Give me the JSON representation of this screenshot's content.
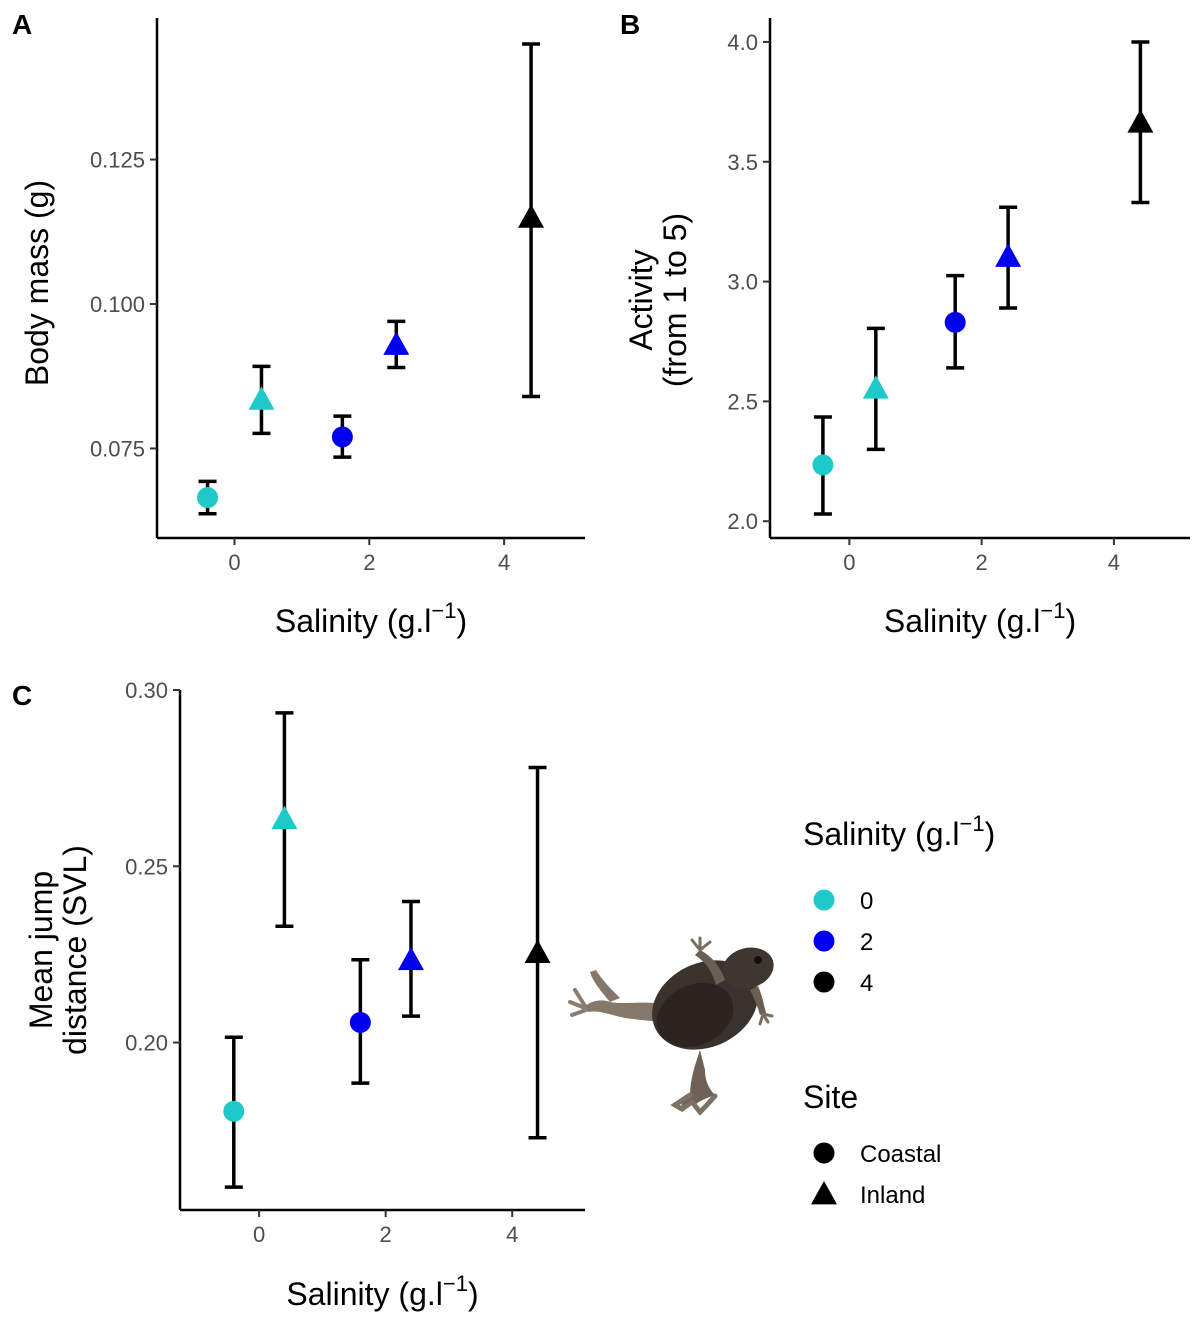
{
  "colors": {
    "salinity_0": "#1ECAC9",
    "salinity_2": "#0000EE",
    "salinity_4": "#000000"
  },
  "chart_data": [
    {
      "panel": "A",
      "type": "scatter",
      "xlabel": "Salinity (g.l",
      "xlabel_sup": "−1",
      "xlabel_end": ")",
      "ylabel": [
        "Body mass (g)"
      ],
      "xlim": [
        -1.15,
        5.2
      ],
      "ylim": [
        0.0595,
        0.1495
      ],
      "xticks": [
        0,
        2,
        4
      ],
      "yticks": [
        0.075,
        0.1,
        0.125
      ],
      "ytick_labels": [
        "0.075",
        "0.100",
        "0.125"
      ],
      "points": [
        {
          "salinity": 0,
          "site": "Coastal",
          "x": -0.4,
          "y": 0.0665,
          "lo": 0.0637,
          "hi": 0.0693
        },
        {
          "salinity": 0,
          "site": "Inland",
          "x": 0.4,
          "y": 0.0835,
          "lo": 0.0776,
          "hi": 0.0892
        },
        {
          "salinity": 2,
          "site": "Coastal",
          "x": 1.6,
          "y": 0.077,
          "lo": 0.0735,
          "hi": 0.0806
        },
        {
          "salinity": 2,
          "site": "Inland",
          "x": 2.4,
          "y": 0.093,
          "lo": 0.089,
          "hi": 0.097
        },
        {
          "salinity": 4,
          "site": "Inland",
          "x": 4.4,
          "y": 0.115,
          "lo": 0.084,
          "hi": 0.145
        }
      ]
    },
    {
      "panel": "B",
      "type": "scatter",
      "xlabel": "Salinity (g.l",
      "xlabel_sup": "−1",
      "xlabel_end": ")",
      "ylabel": [
        "Activity",
        "(from 1 to 5)"
      ],
      "xlim": [
        -1.2,
        5.15
      ],
      "ylim": [
        1.93,
        4.1
      ],
      "xticks": [
        0,
        2,
        4
      ],
      "yticks": [
        2.0,
        2.5,
        3.0,
        3.5,
        4.0
      ],
      "ytick_labels": [
        "2.0",
        "2.5",
        "3.0",
        "3.5",
        "4.0"
      ],
      "points": [
        {
          "salinity": 0,
          "site": "Coastal",
          "x": -0.4,
          "y": 2.235,
          "lo": 2.03,
          "hi": 2.435
        },
        {
          "salinity": 0,
          "site": "Inland",
          "x": 0.4,
          "y": 2.555,
          "lo": 2.3,
          "hi": 2.805
        },
        {
          "salinity": 2,
          "site": "Coastal",
          "x": 1.6,
          "y": 2.83,
          "lo": 2.64,
          "hi": 3.025
        },
        {
          "salinity": 2,
          "site": "Inland",
          "x": 2.4,
          "y": 3.105,
          "lo": 2.89,
          "hi": 3.31
        },
        {
          "salinity": 4,
          "site": "Inland",
          "x": 4.4,
          "y": 3.665,
          "lo": 3.33,
          "hi": 4.0
        }
      ]
    },
    {
      "panel": "C",
      "type": "scatter",
      "xlabel": "Salinity (g.l",
      "xlabel_sup": "−1",
      "xlabel_end": ")",
      "ylabel": [
        "Mean jump",
        "distance (SVL)"
      ],
      "xlim": [
        -1.25,
        5.15
      ],
      "ylim": [
        0.1525,
        0.3
      ],
      "xticks": [
        0,
        2,
        4
      ],
      "yticks": [
        0.2,
        0.25,
        0.3
      ],
      "ytick_labels": [
        "0.20",
        "0.25",
        "0.30"
      ],
      "points": [
        {
          "salinity": 0,
          "site": "Coastal",
          "x": -0.4,
          "y": 0.1805,
          "lo": 0.159,
          "hi": 0.2015
        },
        {
          "salinity": 0,
          "site": "Inland",
          "x": 0.4,
          "y": 0.2635,
          "lo": 0.233,
          "hi": 0.2935
        },
        {
          "salinity": 2,
          "site": "Coastal",
          "x": 1.6,
          "y": 0.2057,
          "lo": 0.1885,
          "hi": 0.2235
        },
        {
          "salinity": 2,
          "site": "Inland",
          "x": 2.4,
          "y": 0.2235,
          "lo": 0.2075,
          "hi": 0.24
        },
        {
          "salinity": 4,
          "site": "Inland",
          "x": 4.4,
          "y": 0.2255,
          "lo": 0.173,
          "hi": 0.278
        }
      ]
    }
  ],
  "legend": {
    "salinity_title": "Salinity (g.l",
    "salinity_title_sup": "−1",
    "salinity_title_end": ")",
    "salinity_items": [
      {
        "label": "0",
        "color": "#1ECAC9"
      },
      {
        "label": "2",
        "color": "#0000EE"
      },
      {
        "label": "4",
        "color": "#000000"
      }
    ],
    "site_title": "Site",
    "site_items": [
      {
        "label": "Coastal",
        "shape": "circle"
      },
      {
        "label": "Inland",
        "shape": "triangle"
      }
    ]
  },
  "frog_image": {
    "icon": "frog-icon"
  }
}
